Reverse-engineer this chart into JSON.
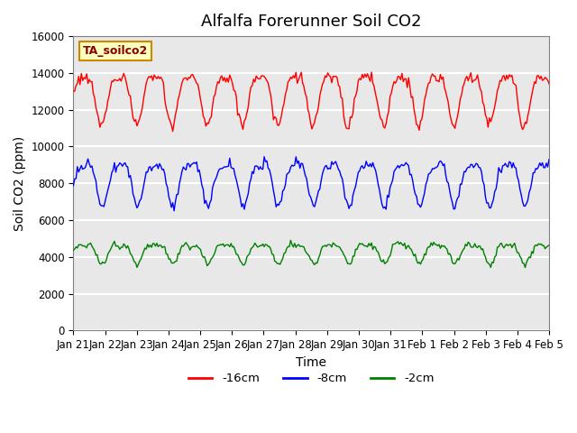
{
  "title": "Alfalfa Forerunner Soil CO2",
  "ylabel": "Soil CO2 (ppm)",
  "xlabel": "Time",
  "legend_label": "TA_soilco2",
  "series_labels": [
    "-16cm",
    "-8cm",
    "-2cm"
  ],
  "series_colors": [
    "red",
    "blue",
    "green"
  ],
  "ylim": [
    0,
    16000
  ],
  "yticks": [
    0,
    2000,
    4000,
    6000,
    8000,
    10000,
    12000,
    14000,
    16000
  ],
  "xtick_labels": [
    "Jan 21",
    "Jan 22",
    "Jan 23",
    "Jan 24",
    "Jan 25",
    "Jan 26",
    "Jan 27",
    "Jan 28",
    "Jan 29",
    "Jan 30",
    "Jan 31",
    "Feb 1",
    "Feb 2",
    "Feb 3",
    "Feb 4",
    "Feb 5"
  ],
  "background_color": "#e8e8e8",
  "grid_color": "white",
  "title_fontsize": 13,
  "axis_fontsize": 10,
  "tick_fontsize": 8.5
}
